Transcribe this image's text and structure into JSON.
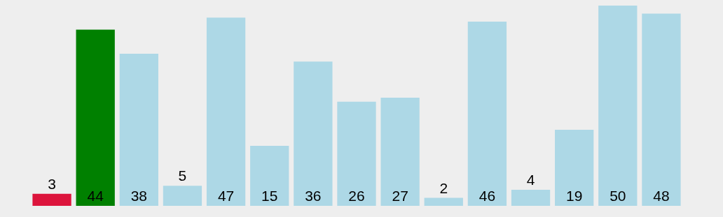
{
  "chart_data": {
    "type": "bar",
    "categories": [
      null,
      null,
      null,
      null,
      null,
      null,
      null,
      null,
      null,
      null,
      null,
      null,
      null,
      null,
      null
    ],
    "values": [
      3,
      44,
      38,
      5,
      47,
      15,
      36,
      26,
      27,
      2,
      46,
      4,
      19,
      50,
      48
    ],
    "colors": [
      "#dc143c",
      "#008000",
      "#add8e6",
      "#add8e6",
      "#add8e6",
      "#add8e6",
      "#add8e6",
      "#add8e6",
      "#add8e6",
      "#add8e6",
      "#add8e6",
      "#add8e6",
      "#add8e6",
      "#add8e6",
      "#add8e6"
    ],
    "data_labels": true
  }
}
